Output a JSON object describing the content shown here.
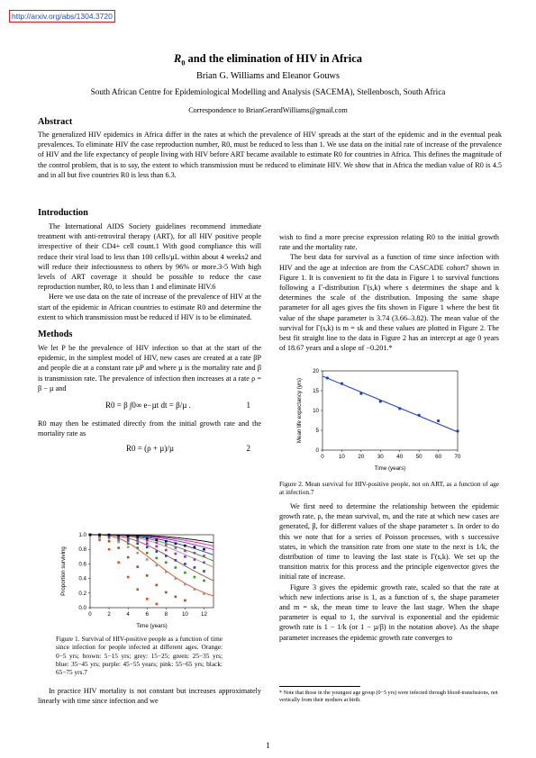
{
  "header": {
    "arxiv_link": "http://arxiv.org/abs/1304.3720"
  },
  "title_sym": "R",
  "title_sub": "0",
  "title_rest": " and the elimination of HIV in Africa",
  "authors": "Brian G. Williams and Eleanor Gouws",
  "affiliation": "South African Centre for Epidemiological Modelling and Analysis (SACEMA), Stellenbosch, South Africa",
  "correspondence": "Correspondence to BrianGerardWilliams@gmail.com",
  "abstract": {
    "heading": "Abstract",
    "text": "The generalized HIV epidemics in Africa differ in the rates at which the prevalence of HIV spreads at the start of the epidemic and in the eventual peak prevalences. To eliminate HIV the case reproduction number, R0, must be reduced to less than 1. We use data on the initial rate of increase of the prevalence of HIV and the life expectancy of people living with HIV before ART became available to estimate R0 for countries in Africa. This defines the magnitude of the control problem, that is to say, the extent to which transmission must be reduced to eliminate HIV. We show that in Africa the median value of R0 is 4.5 and in all but five countries R0 is less than 6.3."
  },
  "introduction": {
    "heading": "Introduction",
    "p1": "The International AIDS Society guidelines recommend immediate treatment with anti-retroviral therapy (ART), for all HIV positive people irrespective of their CD4+ cell count.1 With good compliance this will reduce their viral load to less than 100 cells/µL within about 4 weeks2 and will reduce their infectiousness to others by 96% or more.3-5 With high levels of ART coverage it should be possible to reduce the case reproduction number, R0, to less than 1 and eliminate HIV.6",
    "p2": "Here we use data on the rate of increase of the prevalence of HIV at the start of the epidemic in African countries to estimate R0 and determine the extent to which transmission must be reduced if HIV is to be eliminated."
  },
  "methods": {
    "heading": "Methods",
    "p1": "We let P be the prevalence of HIV infection so that at the start of the epidemic, in the simplest model of HIV, new cases are created at a rate βP and people die at a constant rate µP and where µ is the mortality rate and β is transmission rate. The prevalence of infection then increases at a rate ρ = β − µ and",
    "eq1_lhs": "R0 = β ∫0∞ e−µt dt = β/µ .",
    "eq1_num": "1",
    "p2": "R0 may then be estimated directly from the initial growth rate and the mortality rate as",
    "eq2": "R0 = (ρ + µ)/µ",
    "eq2_num": "2",
    "p3": "In practice HIV mortality is not constant but increases approximately linearly with time since infection and we"
  },
  "right_column": {
    "p1": "wish to find a more precise expression relating R0 to the initial growth rate and the mortality rate.",
    "p2": "The best data for survival as a function of time since infection with HIV and the age at infection are from the CASCADE cohort7 shown in Figure 1. It is convenient to fit the data in Figure 1 to survival functions following a Γ-distribution Γ(s,k) where s determines the shape and k determines the scale of the distribution. Imposing the same shape parameter for all ages gives the fits shown in Figure 1 where the best fit value of the shape parameter is 3.74 (3.66–3.82). The mean value of the survival for Γ(s,k) is m = sk and these values are plotted in Figure 2. The best fit straight line to the data in Figure 2 has an intercept at age 0 years of 18.67 years and a slope of −0.201.*",
    "p3": "We first need to determine the relationship between the epidemic growth rate, ρ, the mean survival, m, and the rate at which new cases are generated, β, for different values of the shape parameter s. In order to do this we note that for a series of Poisson processes, with s successive states, in which the transition rate from one state to the next is 1/k, the distribution of time to leaving the last state is Γ(s,k). We set up the transition matrix for this process and the principle eigenvector gives the initial rate of increase.",
    "p4": "Figure 3 gives the epidemic growth rate, scaled so that the rate at which new infections arise is 1, as a function of s, the shape parameter and m = sk, the mean time to leave the last stage. When the shape parameter is equal to 1, the survival is exponential and the epidemic growth rate is 1 − 1/k (or 1 − µ/β) in the notation above). As the shape parameter increases the epidemic growth rate converges to"
  },
  "figure1": {
    "caption": "Figure 1. Survival of HIV-positive people as a function of time since infection for people infected at different ages. Orange: 0−5 yrs; brown: 5−15 yrs; grey: 15−25; green: 25−35 yrs; blue: 35−45 yrs; purple: 45−55 years; pink: 55−65 yrs; black: 65−75 yrs.7"
  },
  "figure2": {
    "caption": "Figure 2. Mean survival for HIV-positive people, not on ART, as a function of age at infection.7"
  },
  "footnote": "* Note that those in the youngest age group (0−5 yrs) were infected through blood-transfusions, not vertically from their mothers at birth.",
  "page_number": "1",
  "chart_data": [
    {
      "type": "scatter",
      "title": "",
      "xlabel": "Time (years)",
      "ylabel": "Proportion surviving",
      "xlim": [
        0,
        13
      ],
      "ylim": [
        0,
        1
      ],
      "xticks": [
        "0",
        "2",
        "4",
        "6",
        "8",
        "10",
        "12"
      ],
      "yticks": [
        "0.0",
        "0.2",
        "0.4",
        "0.6",
        "0.8",
        "1.0"
      ],
      "series": [
        {
          "color": "#e84a1a",
          "x": [
            0,
            1,
            2,
            3,
            4,
            5,
            6,
            7
          ],
          "values": [
            1.0,
            0.93,
            0.8,
            0.62,
            0.42,
            0.25,
            0.12,
            0.05
          ],
          "scale": 2.2
        },
        {
          "color": "#a0522d",
          "x": [
            0,
            1,
            2,
            3,
            4,
            5,
            6,
            7,
            8,
            9,
            10
          ],
          "values": [
            1.0,
            0.97,
            0.91,
            0.82,
            0.69,
            0.56,
            0.44,
            0.31,
            0.21,
            0.15,
            0.1
          ],
          "scale": 3.0
        },
        {
          "color": "#999999",
          "x": [
            0,
            1,
            2,
            3,
            4,
            5,
            6,
            7,
            8,
            9,
            10,
            11,
            12
          ],
          "values": [
            1.0,
            0.98,
            0.95,
            0.9,
            0.83,
            0.75,
            0.66,
            0.58,
            0.49,
            0.4,
            0.32,
            0.25,
            0.19
          ],
          "scale": 3.8
        },
        {
          "color": "#2a9a2a",
          "x": [
            0,
            1,
            2,
            3,
            4,
            5,
            6,
            7,
            8,
            9,
            10,
            11,
            12
          ],
          "values": [
            1.0,
            0.99,
            0.97,
            0.93,
            0.88,
            0.82,
            0.75,
            0.68,
            0.62,
            0.55,
            0.48,
            0.42,
            0.37
          ],
          "scale": 4.3
        },
        {
          "color": "#1a3fcf",
          "x": [
            0,
            1,
            2,
            3,
            4,
            5,
            6,
            7,
            8,
            9,
            10,
            11,
            12
          ],
          "values": [
            1.0,
            0.99,
            0.98,
            0.96,
            0.92,
            0.88,
            0.83,
            0.77,
            0.71,
            0.65,
            0.6,
            0.55,
            0.5
          ],
          "scale": 4.9
        },
        {
          "color": "#8a2be2",
          "x": [
            0,
            1,
            2,
            3,
            4,
            5,
            6,
            7,
            8,
            9,
            10,
            11,
            12
          ],
          "values": [
            1.0,
            1.0,
            0.99,
            0.97,
            0.95,
            0.92,
            0.88,
            0.84,
            0.79,
            0.74,
            0.7,
            0.66,
            0.62
          ],
          "scale": 5.6
        },
        {
          "color": "#e0209a",
          "x": [
            0,
            1,
            2,
            3,
            4,
            5,
            6,
            7,
            8,
            9,
            10,
            11,
            12
          ],
          "values": [
            1.0,
            1.0,
            0.99,
            0.98,
            0.97,
            0.95,
            0.92,
            0.89,
            0.86,
            0.82,
            0.78,
            0.75,
            0.71
          ],
          "scale": 6.3
        },
        {
          "color": "#000000",
          "x": [
            0,
            1,
            2,
            3,
            4,
            5,
            6,
            7,
            8,
            9,
            10,
            11,
            12
          ],
          "values": [
            1.0,
            1.0,
            1.0,
            0.99,
            0.98,
            0.97,
            0.95,
            0.93,
            0.91,
            0.88,
            0.85,
            0.83,
            0.8
          ],
          "scale": 7.2
        }
      ]
    },
    {
      "type": "scatter",
      "title": "",
      "xlabel": "Time (years)",
      "ylabel": "Mean life expectancy (yrs)",
      "xlim": [
        0,
        70
      ],
      "ylim": [
        0,
        20
      ],
      "xticks": [
        "0",
        "10",
        "20",
        "30",
        "40",
        "50",
        "60",
        "70"
      ],
      "yticks": [
        "0",
        "5",
        "10",
        "15",
        "20"
      ],
      "points_x": [
        2.5,
        10,
        20,
        30,
        40,
        50,
        60,
        70
      ],
      "points_y": [
        18.2,
        16.8,
        14.3,
        12.3,
        10.5,
        8.8,
        7.4,
        4.8
      ],
      "fit": {
        "intercept": 18.67,
        "slope": -0.201
      },
      "color": "#1a3fcf"
    }
  ]
}
